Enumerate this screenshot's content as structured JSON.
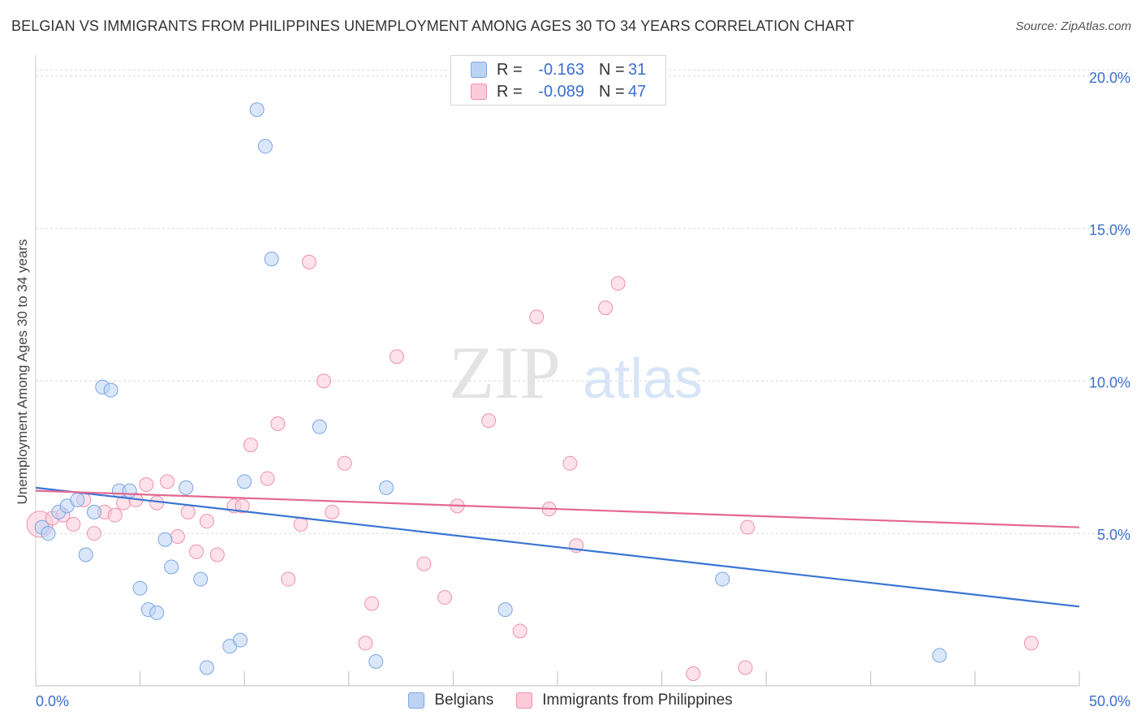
{
  "title": "BELGIAN VS IMMIGRANTS FROM PHILIPPINES UNEMPLOYMENT AMONG AGES 30 TO 34 YEARS CORRELATION CHART",
  "source": "Source: ZipAtlas.com",
  "watermark": {
    "zip": "ZIP",
    "atlas": "atlas"
  },
  "legend_top": {
    "r_label": "R =",
    "n_label": "N =",
    "rows": [
      {
        "r": "-0.163",
        "n": "31"
      },
      {
        "r": "-0.089",
        "n": "47"
      }
    ]
  },
  "legend_bottom": {
    "items": [
      "Belgians",
      "Immigrants from Philippines"
    ]
  },
  "colors": {
    "belgians_fill": "#bcd3f5",
    "belgians_stroke": "#7aa6e0",
    "belgians_line": "#3a75d4",
    "philippines_fill": "#fbcbd9",
    "philippines_stroke": "#ee90ad",
    "philippines_line": "#e3688f",
    "tick_text": "#3a6fd0",
    "grid": "#d9d9d9"
  },
  "chart_data": {
    "type": "scatter",
    "title": "BELGIAN VS IMMIGRANTS FROM PHILIPPINES UNEMPLOYMENT AMONG AGES 30 TO 34 YEARS CORRELATION CHART",
    "xlabel": "",
    "ylabel": "Unemployment Among Ages 30 to 34 years",
    "xlim": [
      0,
      50
    ],
    "ylim": [
      0,
      20.5
    ],
    "x_tick_labels": [
      "0.0%",
      "50.0%"
    ],
    "y_ticks": [
      5,
      10,
      15,
      20
    ],
    "y_tick_labels": [
      "5.0%",
      "10.0%",
      "15.0%",
      "20.0%"
    ],
    "grid": true,
    "legend_position": "top-center",
    "series": [
      {
        "name": "Belgians",
        "r": -0.163,
        "n": 31,
        "trend": {
          "x": [
            0,
            50
          ],
          "y": [
            6.5,
            2.6
          ]
        },
        "points": [
          [
            0.3,
            5.2
          ],
          [
            0.6,
            5.0
          ],
          [
            1.1,
            5.7
          ],
          [
            1.5,
            5.9
          ],
          [
            2.0,
            6.1
          ],
          [
            2.4,
            4.3
          ],
          [
            2.8,
            5.7
          ],
          [
            3.2,
            9.8
          ],
          [
            3.6,
            9.7
          ],
          [
            4.0,
            6.4
          ],
          [
            4.5,
            6.4
          ],
          [
            5.0,
            3.2
          ],
          [
            5.4,
            2.5
          ],
          [
            5.8,
            2.4
          ],
          [
            6.2,
            4.8
          ],
          [
            6.5,
            3.9
          ],
          [
            7.2,
            6.5
          ],
          [
            7.9,
            3.5
          ],
          [
            8.2,
            0.6
          ],
          [
            9.3,
            1.3
          ],
          [
            9.8,
            1.5
          ],
          [
            10.0,
            6.7
          ],
          [
            10.6,
            18.9
          ],
          [
            11.0,
            17.7
          ],
          [
            11.3,
            14.0
          ],
          [
            13.6,
            8.5
          ],
          [
            16.3,
            0.8
          ],
          [
            16.8,
            6.5
          ],
          [
            22.5,
            2.5
          ],
          [
            32.9,
            3.5
          ],
          [
            43.3,
            1.0
          ]
        ]
      },
      {
        "name": "Immigrants from Philippines",
        "r": -0.089,
        "n": 47,
        "trend": {
          "x": [
            0,
            50
          ],
          "y": [
            6.4,
            5.2
          ]
        },
        "points": [
          [
            0.2,
            5.3
          ],
          [
            0.8,
            5.5
          ],
          [
            1.3,
            5.6
          ],
          [
            1.8,
            5.3
          ],
          [
            2.3,
            6.1
          ],
          [
            2.8,
            5.0
          ],
          [
            3.3,
            5.7
          ],
          [
            3.8,
            5.6
          ],
          [
            4.2,
            6.0
          ],
          [
            4.8,
            6.1
          ],
          [
            5.3,
            6.6
          ],
          [
            5.8,
            6.0
          ],
          [
            6.3,
            6.7
          ],
          [
            6.8,
            4.9
          ],
          [
            7.3,
            5.7
          ],
          [
            7.7,
            4.4
          ],
          [
            8.2,
            5.4
          ],
          [
            8.7,
            4.3
          ],
          [
            9.5,
            5.9
          ],
          [
            9.9,
            5.9
          ],
          [
            10.3,
            7.9
          ],
          [
            11.1,
            6.8
          ],
          [
            11.6,
            8.6
          ],
          [
            12.1,
            3.5
          ],
          [
            12.7,
            5.3
          ],
          [
            13.1,
            13.9
          ],
          [
            13.8,
            10.0
          ],
          [
            14.2,
            5.7
          ],
          [
            14.8,
            7.3
          ],
          [
            15.8,
            1.4
          ],
          [
            16.1,
            2.7
          ],
          [
            17.3,
            10.8
          ],
          [
            18.6,
            4.0
          ],
          [
            19.6,
            2.9
          ],
          [
            20.2,
            5.9
          ],
          [
            21.7,
            8.7
          ],
          [
            23.2,
            1.8
          ],
          [
            24.0,
            12.1
          ],
          [
            24.6,
            5.8
          ],
          [
            25.6,
            7.3
          ],
          [
            25.9,
            4.6
          ],
          [
            27.3,
            12.4
          ],
          [
            27.9,
            13.2
          ],
          [
            31.5,
            0.4
          ],
          [
            34.0,
            0.6
          ],
          [
            34.1,
            5.2
          ],
          [
            47.7,
            1.4
          ]
        ]
      }
    ]
  }
}
